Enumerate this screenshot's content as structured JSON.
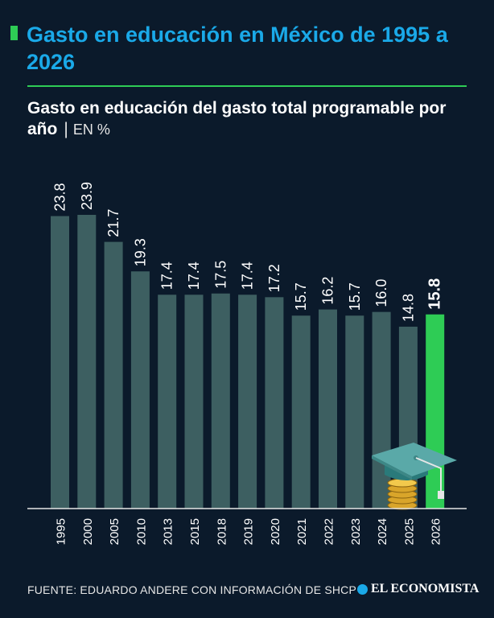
{
  "title": "Gasto en educación en México de 1995 a 2026",
  "subtitle": "Gasto en educación del gasto total programable por año",
  "unit": "EN %",
  "source": "FUENTE: EDUARDO ANDERE CON INFORMACIÓN DE SHCP",
  "brand": "EL ECONOMISTA",
  "colors": {
    "bar": "#3d5f61",
    "highlight": "#2ecc55",
    "title": "#1aa9e8",
    "background": "#0b1a2b"
  },
  "icons": [
    "graduation-cap-icon",
    "coin-stack-icon"
  ],
  "chart_data": {
    "type": "bar",
    "categories": [
      "1995",
      "2000",
      "2005",
      "2010",
      "2013",
      "2015",
      "2018",
      "2019",
      "2020",
      "2021",
      "2022",
      "2023",
      "2024",
      "2025",
      "2026"
    ],
    "values": [
      23.8,
      23.9,
      21.7,
      19.3,
      17.4,
      17.4,
      17.5,
      17.4,
      17.2,
      15.7,
      16.2,
      15.7,
      16.0,
      14.8,
      15.8
    ],
    "value_labels": [
      "23.8",
      "23.9",
      "21.7",
      "19.3",
      "17.4",
      "17.4",
      "17.5",
      "17.4",
      "17.2",
      "15.7",
      "16.2",
      "15.7",
      "16.0",
      "14.8",
      "15.8"
    ],
    "highlight": "2026",
    "ylim": [
      0,
      24
    ],
    "grid": false,
    "legend": "none"
  }
}
